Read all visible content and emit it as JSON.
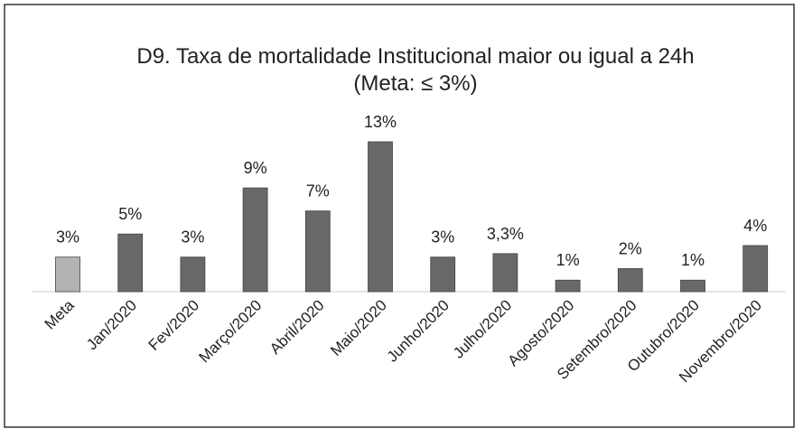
{
  "chart_data": {
    "type": "bar",
    "title": "D9. Taxa de mortalidade Institucional maior ou igual a 24h",
    "subtitle": "(Meta: ≤ 3%)",
    "categories": [
      "Meta",
      "Jan/2020",
      "Fev/2020",
      "Março/2020",
      "Abril/2020",
      "Maio/2020",
      "Junho/2020",
      "Julho/2020",
      "Agosto/2020",
      "Setembro/2020",
      "Outubro/2020",
      "Novembro/2020"
    ],
    "values": [
      3,
      5,
      3,
      9,
      7,
      13,
      3,
      3.3,
      1,
      2,
      1,
      4
    ],
    "value_labels": [
      "3%",
      "5%",
      "3%",
      "9%",
      "7%",
      "13%",
      "3%",
      "3,3%",
      "1%",
      "2%",
      "1%",
      "4%"
    ],
    "colors": [
      "#b3b3b3",
      "#686868",
      "#686868",
      "#686868",
      "#686868",
      "#686868",
      "#686868",
      "#686868",
      "#686868",
      "#686868",
      "#686868",
      "#686868"
    ]
  }
}
